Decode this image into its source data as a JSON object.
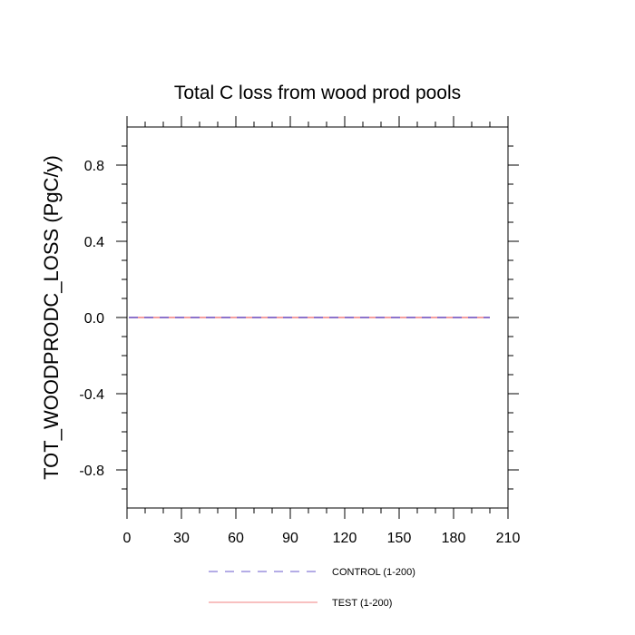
{
  "chart_data": {
    "type": "line",
    "title": "Total C loss from wood prod pools",
    "xlabel": "",
    "ylabel": "TOT_WOODPRODC_LOSS  (PgC/y)",
    "xlim": [
      0,
      210
    ],
    "ylim": [
      -1.0,
      1.0
    ],
    "x_ticks": [
      0,
      30,
      60,
      90,
      120,
      150,
      180,
      210
    ],
    "x_tick_labels": [
      "0",
      "30",
      "60",
      "90",
      "120",
      "150",
      "180",
      "210"
    ],
    "y_ticks": [
      0.8,
      0.4,
      0.0,
      -0.4,
      -0.8
    ],
    "y_tick_labels": [
      "0.8",
      "0.4",
      "0.0",
      "-0.4",
      "-0.8"
    ],
    "grid": false,
    "legend_position": "bottom",
    "series": [
      {
        "name": "CONTROL (1-200)",
        "color": "#6a5acd",
        "dash": "dashed",
        "x": [
          1,
          200
        ],
        "y": [
          0.0,
          0.0
        ]
      },
      {
        "name": "TEST (1-200)",
        "color": "#f08080",
        "dash": "solid",
        "x": [
          1,
          200
        ],
        "y": [
          0.0,
          0.0
        ]
      }
    ]
  }
}
